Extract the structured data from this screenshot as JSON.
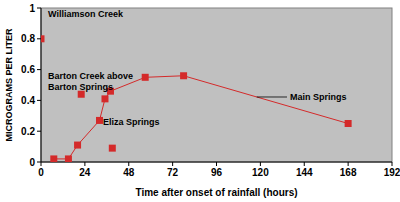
{
  "chart_data": {
    "type": "scatter",
    "x_label": "Time after onset of rainfall (hours)",
    "y_label": "MICROGRAMS PER LITER",
    "xlim": [
      0,
      192
    ],
    "xticks": [
      0,
      24,
      48,
      72,
      96,
      120,
      144,
      168,
      192
    ],
    "ylim": [
      0,
      1
    ],
    "yticks": [
      0,
      0.2,
      0.4,
      0.6,
      0.8,
      1
    ],
    "grid": false,
    "series": [
      {
        "name": "Williamson Creek",
        "color": "#d42a2a",
        "marker": "square",
        "x": [
          0
        ],
        "values": [
          0.8
        ]
      },
      {
        "name": "Barton Creek above Barton Springs",
        "color": "#d42a2a",
        "marker": "square",
        "x": [
          22
        ],
        "values": [
          0.44
        ]
      },
      {
        "name": "Eliza Springs",
        "color": "#d42a2a",
        "marker": "square",
        "x": [
          39
        ],
        "values": [
          0.09
        ]
      },
      {
        "name": "Main Springs",
        "type": "line",
        "color": "#d42a2a",
        "marker": "square",
        "line_style": "solid",
        "x": [
          7,
          15,
          20,
          32,
          35,
          38,
          57,
          78,
          168
        ],
        "values": [
          0.02,
          0.02,
          0.11,
          0.27,
          0.41,
          0.46,
          0.55,
          0.56,
          0.25
        ]
      }
    ]
  }
}
